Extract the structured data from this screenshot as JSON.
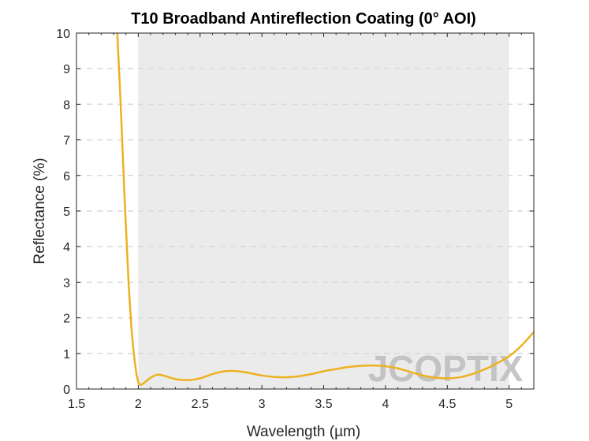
{
  "chart_data": {
    "type": "line",
    "title": "T10 Broadband Antireflection Coating (0° AOI)",
    "xlabel": "Wavelength (µm)",
    "ylabel": "Reflectance (%)",
    "xlim": [
      1.5,
      5.2
    ],
    "ylim": [
      0,
      10
    ],
    "xticks": [
      "1.5",
      "2",
      "2.5",
      "3",
      "3.5",
      "4",
      "4.5",
      "5"
    ],
    "yticks": [
      "0",
      "1",
      "2",
      "3",
      "4",
      "5",
      "6",
      "7",
      "8",
      "9",
      "10"
    ],
    "grid": "y-dashed",
    "shaded_band": {
      "x": [
        2.0,
        5.0
      ],
      "color": "#ebebeb"
    },
    "series": [
      {
        "color": "#edb120",
        "x": [
          1.83,
          1.86,
          1.89,
          1.92,
          1.95,
          1.98,
          2.0,
          2.02,
          2.05,
          2.1,
          2.15,
          2.2,
          2.3,
          2.4,
          2.5,
          2.6,
          2.7,
          2.8,
          2.9,
          3.0,
          3.1,
          3.2,
          3.3,
          3.4,
          3.5,
          3.6,
          3.7,
          3.8,
          3.9,
          4.0,
          4.1,
          4.2,
          4.3,
          4.4,
          4.5,
          4.6,
          4.7,
          4.8,
          4.9,
          5.0,
          5.1,
          5.2
        ],
        "y": [
          10.0,
          7.8,
          5.3,
          3.1,
          1.5,
          0.55,
          0.2,
          0.12,
          0.18,
          0.32,
          0.4,
          0.38,
          0.28,
          0.25,
          0.3,
          0.42,
          0.5,
          0.5,
          0.45,
          0.38,
          0.34,
          0.33,
          0.36,
          0.42,
          0.5,
          0.56,
          0.62,
          0.65,
          0.66,
          0.64,
          0.58,
          0.48,
          0.38,
          0.32,
          0.3,
          0.33,
          0.42,
          0.55,
          0.72,
          0.92,
          1.22,
          1.6
        ]
      }
    ]
  },
  "watermark": {
    "text": "JCOPTIX"
  }
}
